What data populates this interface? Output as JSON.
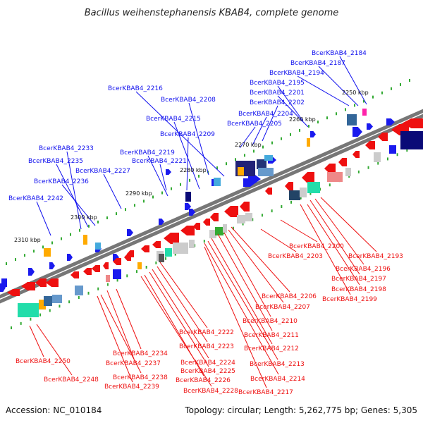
{
  "header": {
    "title": "Bacillus weihenstephanensis KBAB4, complete genome"
  },
  "footer": {
    "accession": "Accession: NC_010184",
    "summary": "Topology: circular; Length: 5,262,775 bp; Genes: 5,305"
  },
  "colors": {
    "forward_label": "#1010ee",
    "reverse_label": "#ee1010",
    "backbone": "#777777"
  },
  "ticks": [
    "2250 kbp",
    "2260 kbp",
    "2270 kbp",
    "2280 kbp",
    "2290 kbp",
    "2300 kbp",
    "2310 kbp"
  ],
  "forward_labels": [
    "BcerKBAB4_2184",
    "BcerKBAB4_2187",
    "BcerKBAB4_2194",
    "BcerKBAB4_2195",
    "BcerKBAB4_2201",
    "BcerKBAB4_2202",
    "BcerKBAB4_2204",
    "BcerKBAB4_2205",
    "BcerKBAB4_2216",
    "BcerKBAB4_2208",
    "BcerKBAB4_2215",
    "BcerKBAB4_2209",
    "BcerKBAB4_2233",
    "BcerKBAB4_2219",
    "BcerKBAB4_2235",
    "BcerKBAB4_2221",
    "BcerKBAB4_2236",
    "BcerKBAB4_2227",
    "BcerKBAB4_2242"
  ],
  "reverse_labels": [
    "BcerKBAB4_2200",
    "BcerKBAB4_2193",
    "BcerKBAB4_2203",
    "BcerKBAB4_2196",
    "BcerKBAB4_2197",
    "BcerKBAB4_2198",
    "BcerKBAB4_2199",
    "BcerKBAB4_2206",
    "BcerKBAB4_2207",
    "BcerKBAB4_2210",
    "BcerKBAB4_2211",
    "BcerKBAB4_2212",
    "BcerKBAB4_2213",
    "BcerKBAB4_2214",
    "BcerKBAB4_2217",
    "BcerKBAB4_2222",
    "BcerKBAB4_2223",
    "BcerKBAB4_2224",
    "BcerKBAB4_2225",
    "BcerKBAB4_2226",
    "BcerKBAB4_2228",
    "BcerKBAB4_2234",
    "BcerKBAB4_2237",
    "BcerKBAB4_2238",
    "BcerKBAB4_2239",
    "BcerKBAB4_2250",
    "BcerKBAB4_2248"
  ]
}
